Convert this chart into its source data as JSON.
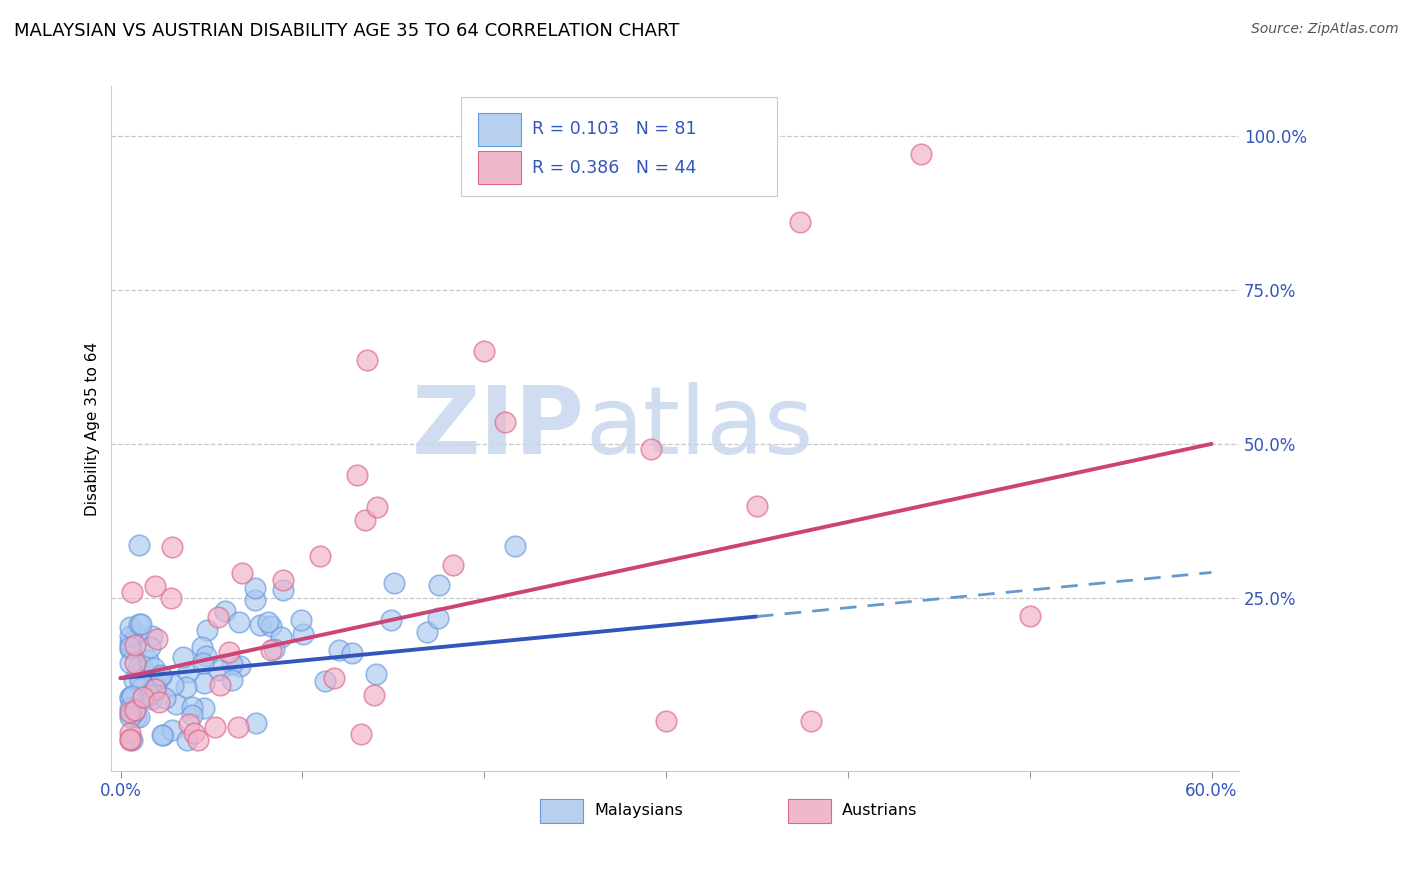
{
  "title": "MALAYSIAN VS AUSTRIAN DISABILITY AGE 35 TO 64 CORRELATION CHART",
  "source_text": "Source: ZipAtlas.com",
  "ylabel": "Disability Age 35 to 64",
  "xlim": [
    0.0,
    0.6
  ],
  "ylim": [
    0.0,
    1.05
  ],
  "xticks": [
    0.0,
    0.1,
    0.2,
    0.3,
    0.4,
    0.5,
    0.6
  ],
  "xticklabels": [
    "0.0%",
    "",
    "",
    "",
    "",
    "",
    "60.0%"
  ],
  "ytick_positions": [
    0.25,
    0.5,
    0.75,
    1.0
  ],
  "ytick_labels": [
    "25.0%",
    "50.0%",
    "75.0%",
    "100.0%"
  ],
  "R_malaysian": 0.103,
  "N_malaysian": 81,
  "R_austrian": 0.386,
  "N_austrian": 44,
  "color_malaysian_fill": "#aac8f0",
  "color_malaysian_edge": "#6699dd",
  "color_austrian_fill": "#f0b0c8",
  "color_austrian_edge": "#dd6688",
  "color_line_malaysian": "#3355bb",
  "color_line_austrian": "#cc4477",
  "color_dashed_malaysian": "#6699cc",
  "watermark_color": "#d0dff5",
  "legend_box_color_m": "#b8d0f0",
  "legend_box_color_a": "#f0b8cc",
  "background_color": "#ffffff",
  "grid_color": "#bbbbbb",
  "title_fontsize": 13,
  "axis_label_color": "#3355bb",
  "tick_color": "#3355bb",
  "legend_text_color": "#000000",
  "legend_rn_color": "#3355bb",
  "seed_malaysian": 42,
  "seed_austrian": 99
}
